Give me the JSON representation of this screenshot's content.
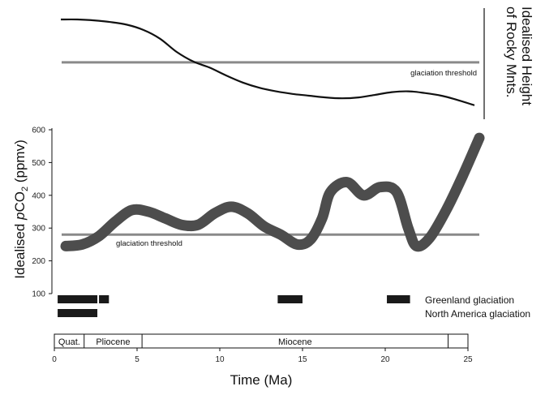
{
  "chart_data": [
    {
      "type": "line",
      "title": "",
      "ylabel_lines": [
        "Idealised Height",
        "of Rocky Mnts."
      ],
      "threshold_label": "glaciation threshold",
      "threshold_level": 0.51,
      "series": [
        {
          "x": [
            0,
            1,
            2,
            3,
            4,
            5,
            6,
            7,
            8,
            9,
            10,
            11,
            12,
            13,
            14,
            15,
            16,
            17,
            18,
            19,
            20,
            21,
            22,
            23,
            24,
            25
          ],
          "y": [
            1.0,
            1.0,
            0.99,
            0.97,
            0.94,
            0.88,
            0.78,
            0.63,
            0.52,
            0.45,
            0.36,
            0.28,
            0.22,
            0.18,
            0.15,
            0.13,
            0.11,
            0.1,
            0.11,
            0.14,
            0.17,
            0.18,
            0.16,
            0.13,
            0.08,
            0.02
          ]
        }
      ]
    },
    {
      "type": "line",
      "ylabel": "Idealised pCO2 (ppmv)",
      "ylabel_parts": {
        "pre": "Idealised ",
        "italic": "p",
        "mid": "CO",
        "sub": "2",
        "post": " (ppmv)"
      },
      "ylim": [
        100,
        600
      ],
      "yticks": [
        "100",
        "200",
        "300",
        "400",
        "500",
        "600"
      ],
      "threshold_label": "glaciation threshold",
      "threshold_value": 280,
      "series": [
        {
          "x": [
            0,
            1,
            2,
            3,
            4,
            5,
            6,
            7,
            8,
            9,
            10,
            11,
            12,
            13,
            14,
            14.8,
            15.5,
            16,
            17,
            18,
            19,
            20,
            20.7,
            21.2,
            22,
            23,
            24,
            25
          ],
          "y": [
            245,
            250,
            275,
            320,
            355,
            350,
            330,
            310,
            310,
            345,
            365,
            345,
            305,
            280,
            250,
            265,
            330,
            410,
            440,
            400,
            425,
            410,
            300,
            245,
            270,
            355,
            460,
            575
          ]
        }
      ],
      "bars": [
        {
          "label": "Greenland glaciation",
          "ranges": [
            [
              0.2,
              2.6
            ],
            [
              2.7,
              3.3
            ],
            [
              13.5,
              15.0
            ],
            [
              20.1,
              21.5
            ]
          ]
        },
        {
          "label": "North America glaciation",
          "ranges": [
            [
              0.2,
              2.6
            ]
          ]
        }
      ]
    }
  ],
  "timescale": {
    "xlabel": "Time (Ma)",
    "xticks": [
      "0",
      "5",
      "10",
      "15",
      "20",
      "25"
    ],
    "epochs": [
      {
        "name": "Quat.",
        "start": 0,
        "end": 1.8
      },
      {
        "name": "Pliocene",
        "start": 1.8,
        "end": 5.3
      },
      {
        "name": "Miocene",
        "start": 5.3,
        "end": 23.8
      }
    ],
    "xlim": [
      0,
      25
    ]
  }
}
